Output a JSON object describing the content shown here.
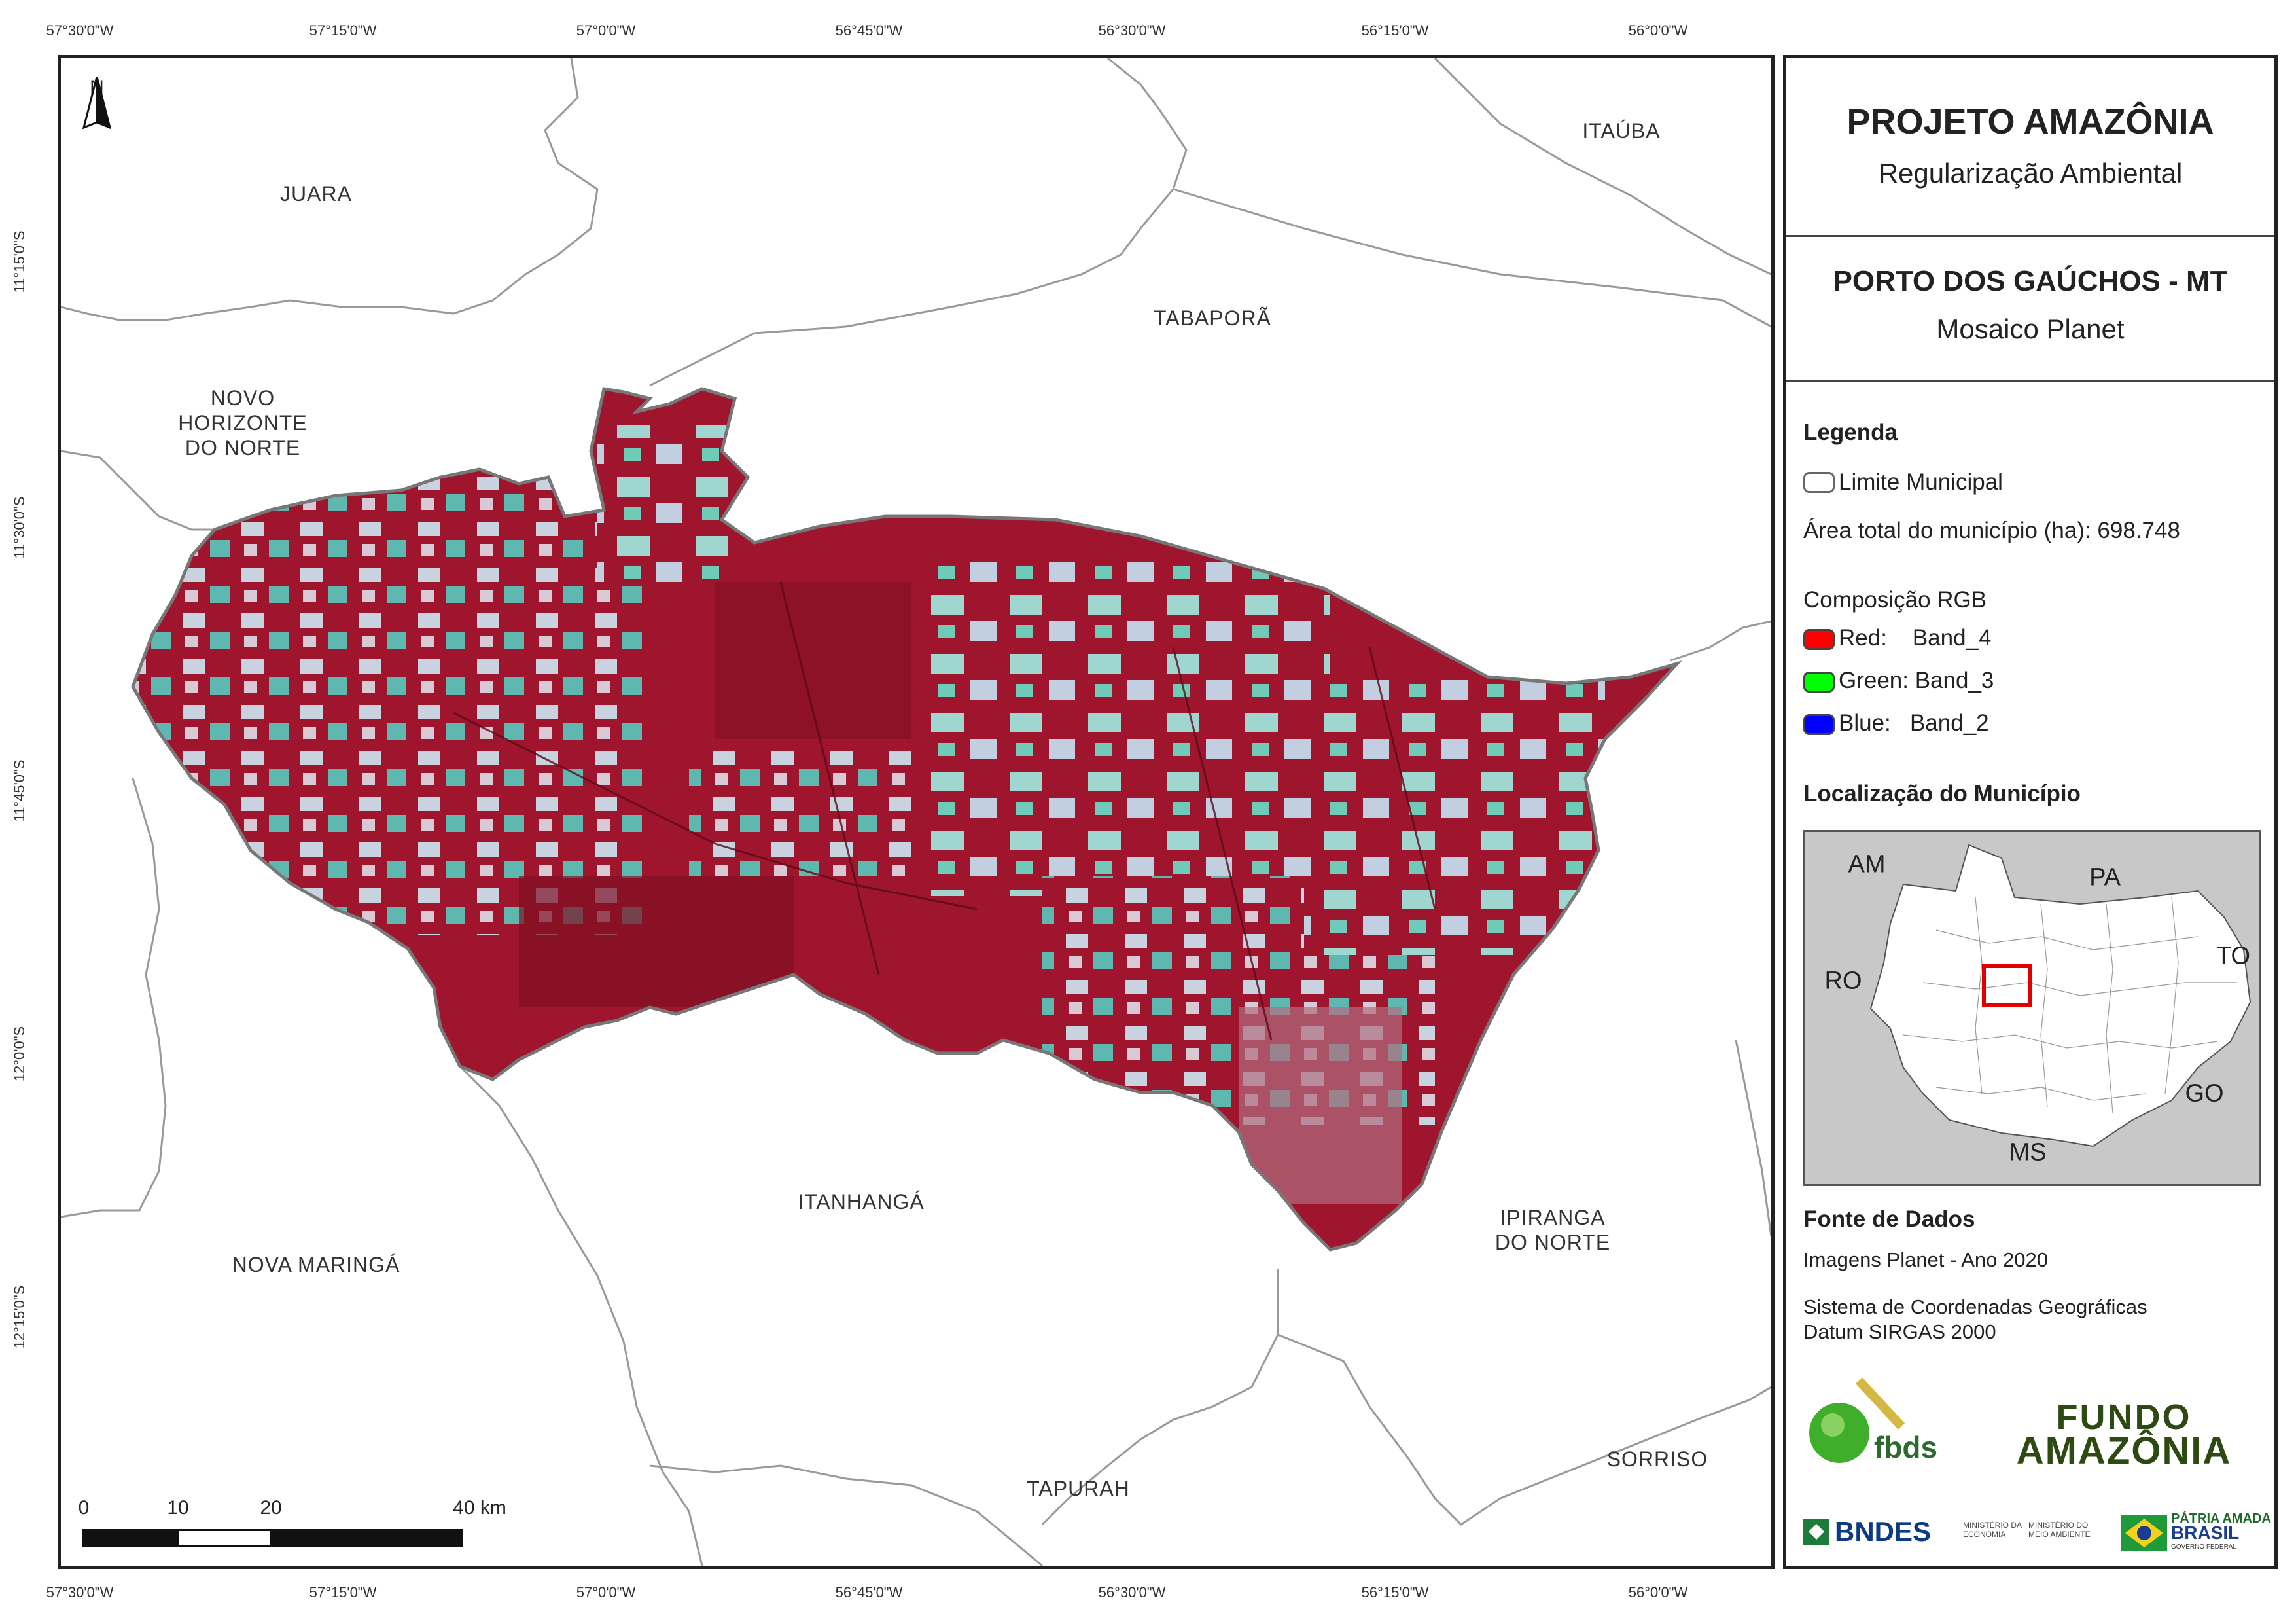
{
  "coordinates": {
    "top": [
      "57°30'0\"W",
      "57°15'0\"W",
      "57°0'0\"W",
      "56°45'0\"W",
      "56°30'0\"W",
      "56°15'0\"W",
      "56°0'0\"W"
    ],
    "bottom": [
      "57°30'0\"W",
      "57°15'0\"W",
      "57°0'0\"W",
      "56°45'0\"W",
      "56°30'0\"W",
      "56°15'0\"W",
      "56°0'0\"W"
    ],
    "left": [
      "11°15'0\"S",
      "11°30'0\"S",
      "11°45'0\"S",
      "12°0'0\"S",
      "12°15'0\"S"
    ]
  },
  "north_arrow": "N",
  "municipalities": {
    "juara": "JUARA",
    "itauba": "ITAÚBA",
    "tabapora": "TABAPORÃ",
    "novo_horizonte": "NOVO\nHORIZONTE\nDO NORTE",
    "itanhanga": "ITANHANGÁ",
    "nova_maringa": "NOVA MARINGÁ",
    "ipiranga": "IPIRANGA\nDO NORTE",
    "tapurah": "TAPURAH",
    "sorriso": "SORRISO"
  },
  "scale_bar": {
    "labels": [
      "0",
      "10",
      "20",
      "40 km"
    ]
  },
  "panel": {
    "project_title": "PROJETO AMAZÔNIA",
    "project_subtitle": "Regularização Ambiental",
    "map_title": "PORTO DOS GAÚCHOS - MT",
    "map_subtitle": "Mosaico Planet",
    "legend_heading": "Legenda",
    "legend_limit": "Limite Municipal",
    "legend_area": "Área total do município (ha): 698.748",
    "rgb_heading": "Composição RGB",
    "rgb": [
      {
        "label": "Red:    Band_4",
        "color": "#ff0000"
      },
      {
        "label": "Green: Band_3",
        "color": "#00ff00"
      },
      {
        "label": "Blue:   Band_2",
        "color": "#0000ff"
      }
    ],
    "location_heading": "Localização do Município",
    "inset_labels": {
      "am": "AM",
      "pa": "PA",
      "to": "TO",
      "ro": "RO",
      "go": "GO",
      "ms": "MS"
    },
    "source_heading": "Fonte de Dados",
    "source_line1": "Imagens Planet - Ano 2020",
    "source_line2": "Sistema de Coordenadas Geográficas",
    "source_line3": "Datum SIRGAS 2000",
    "logos": {
      "fbds": "fbds",
      "fundo_line1": "FUNDO",
      "fundo_line2": "AMAZÔNIA",
      "bndes": "BNDES",
      "ministerio1": "MINISTÉRIO DA\nECONOMIA",
      "ministerio2": "MINISTÉRIO DO\nMEIO AMBIENTE",
      "patria1": "PÁTRIA AMADA",
      "patria2": "BRASIL",
      "patria3": "GOVERNO FEDERAL"
    }
  },
  "colors": {
    "vegetation": "#a0152e",
    "vegetation_dark": "#7d0f23",
    "cleared_cyan": "#5fb8b0",
    "cleared_light": "#c9d3e0",
    "boundary": "#777777",
    "inset_highlight": "#e00000"
  }
}
